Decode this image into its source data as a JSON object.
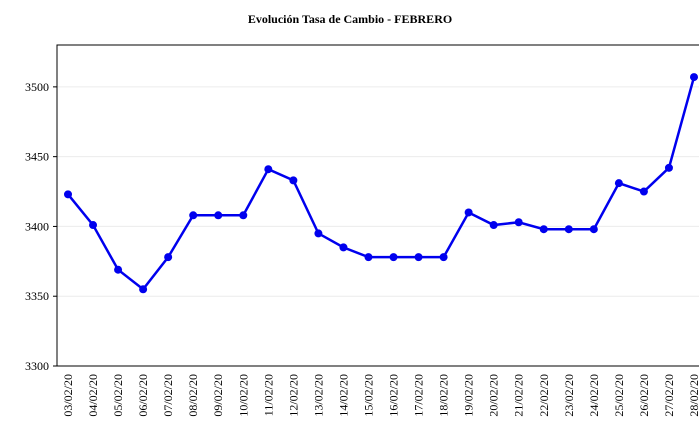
{
  "chart_data": {
    "type": "line",
    "title": "Evolución Tasa de Cambio - FEBRERO",
    "categories": [
      "03/02/20",
      "04/02/20",
      "05/02/20",
      "06/02/20",
      "07/02/20",
      "08/02/20",
      "09/02/20",
      "10/02/20",
      "11/02/20",
      "12/02/20",
      "13/02/20",
      "14/02/20",
      "15/02/20",
      "16/02/20",
      "17/02/20",
      "18/02/20",
      "19/02/20",
      "20/02/20",
      "21/02/20",
      "22/02/20",
      "23/02/20",
      "24/02/20",
      "25/02/20",
      "26/02/20",
      "27/02/20",
      "28/02/20"
    ],
    "series": [
      {
        "color": "#0000ee",
        "values": [
          3423,
          3401,
          3369,
          3355,
          3378,
          3408,
          3408,
          3408,
          3441,
          3433,
          3395,
          3385,
          3378,
          3378,
          3378,
          3378,
          3410,
          3401,
          3403,
          3398,
          3398,
          3398,
          3431,
          3425,
          3442,
          3507
        ]
      }
    ],
    "ylim": [
      3300,
      3530
    ],
    "yticks": [
      3300,
      3350,
      3400,
      3450,
      3500
    ],
    "grid": true
  }
}
